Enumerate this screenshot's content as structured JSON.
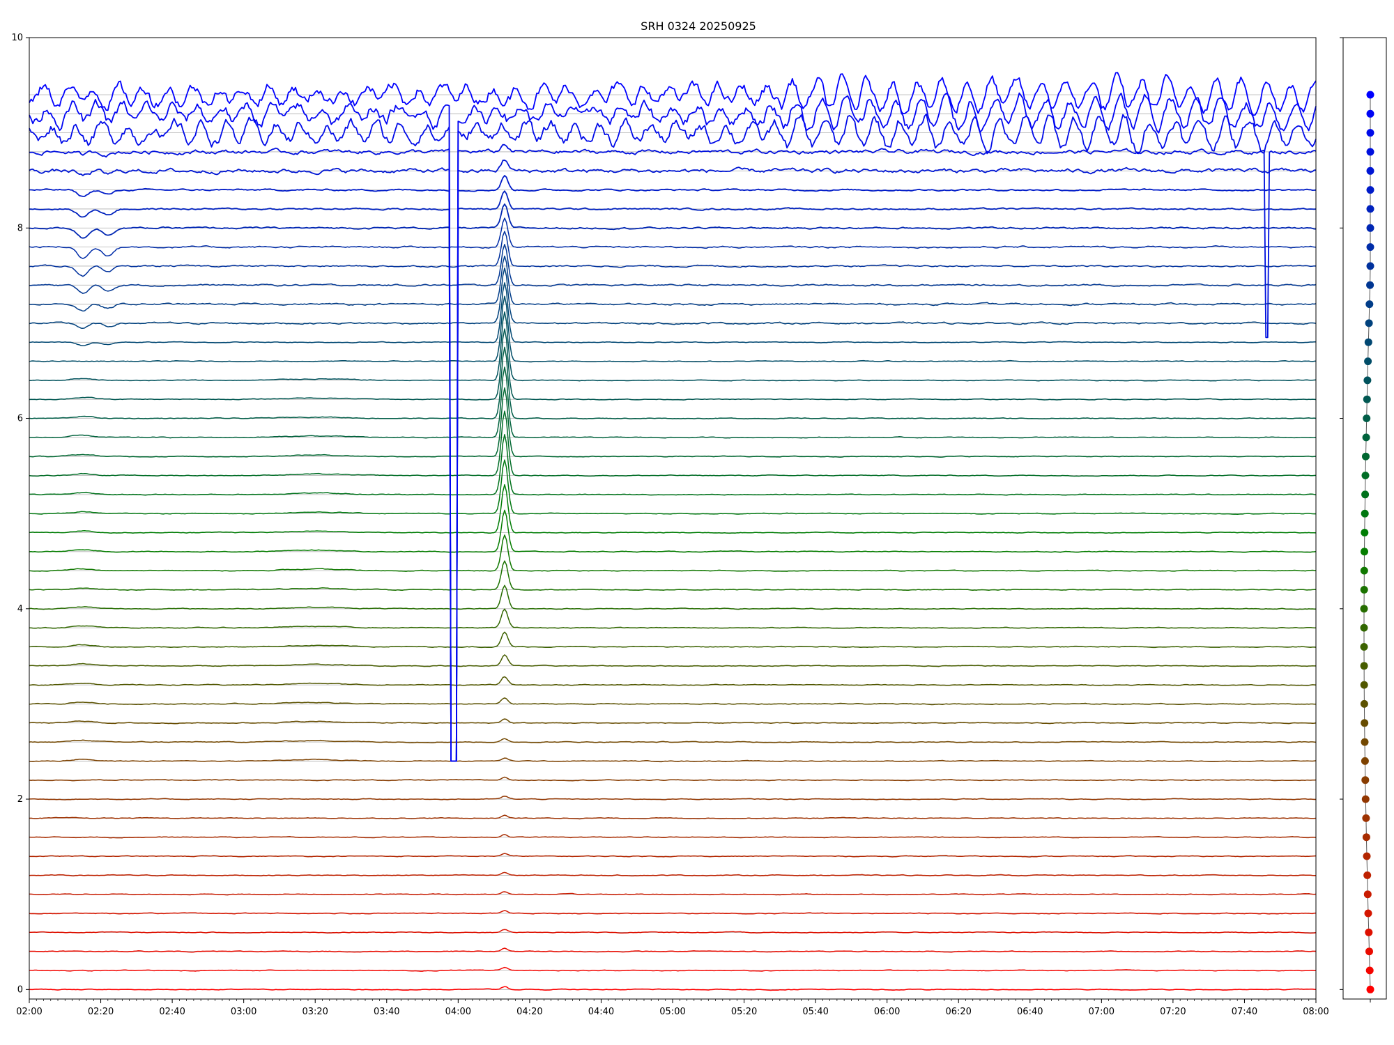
{
  "chart_data": [
    {
      "type": "line",
      "title": "SRH 0324 20250925",
      "xlabel": "",
      "ylabel": "",
      "x_range": [
        "02:00",
        "08:00"
      ],
      "xlim": [
        "02:00",
        "08:00"
      ],
      "ylim": [
        -0.1,
        10
      ],
      "xticks": [
        "02:00",
        "02:20",
        "02:40",
        "03:00",
        "03:20",
        "03:40",
        "04:00",
        "04:20",
        "04:40",
        "05:00",
        "05:20",
        "05:40",
        "06:00",
        "06:20",
        "06:40",
        "07:00",
        "07:20",
        "07:40",
        "08:00"
      ],
      "yticks": [
        "0",
        "2",
        "4",
        "6",
        "8",
        "10"
      ],
      "grid": "horizontal reference line at each trace baseline",
      "legend": "none",
      "color_gradient": [
        "#ff0000",
        "#008000",
        "#0000ff"
      ],
      "trace_count": 48,
      "trace_spacing": 0.2,
      "baselines": [
        0.0,
        0.2,
        0.4,
        0.6,
        0.8,
        1.0,
        1.2,
        1.4,
        1.6,
        1.8,
        2.0,
        2.2,
        2.4,
        2.6,
        2.8,
        3.0,
        3.2,
        3.4,
        3.6,
        3.8,
        4.0,
        4.2,
        4.4,
        4.6,
        4.8,
        5.0,
        5.2,
        5.4,
        5.6,
        5.8,
        6.0,
        6.2,
        6.4,
        6.6,
        6.8,
        7.0,
        7.2,
        7.4,
        7.6,
        7.8,
        8.0,
        8.2,
        8.4,
        8.6,
        8.8,
        9.0,
        9.2,
        9.4
      ],
      "events": [
        {
          "time": "04:13",
          "description": "impulsive burst in all traces, strongest in middle (green) traces"
        },
        {
          "time": "03:58",
          "description": "sharp dropouts in several upper traces"
        },
        {
          "time": "07:46",
          "description": "sharp dropout in upper trace"
        },
        {
          "time": "02:15",
          "description": "dips in upper blue traces"
        }
      ]
    },
    {
      "type": "scatter",
      "title": "",
      "description": "side panel: one point per trace, colored red (bottom) to blue (top)",
      "ylim": [
        -0.1,
        10
      ],
      "y": [
        0.0,
        0.2,
        0.4,
        0.6,
        0.8,
        1.0,
        1.2,
        1.4,
        1.6,
        1.8,
        2.0,
        2.2,
        2.4,
        2.6,
        2.8,
        3.0,
        3.2,
        3.4,
        3.6,
        3.8,
        4.0,
        4.2,
        4.4,
        4.6,
        4.8,
        5.0,
        5.2,
        5.4,
        5.6,
        5.8,
        6.0,
        6.2,
        6.4,
        6.6,
        6.8,
        7.0,
        7.2,
        7.4,
        7.6,
        7.8,
        8.0,
        8.2,
        8.4,
        8.6,
        8.8,
        9.0,
        9.2,
        9.4
      ]
    }
  ]
}
